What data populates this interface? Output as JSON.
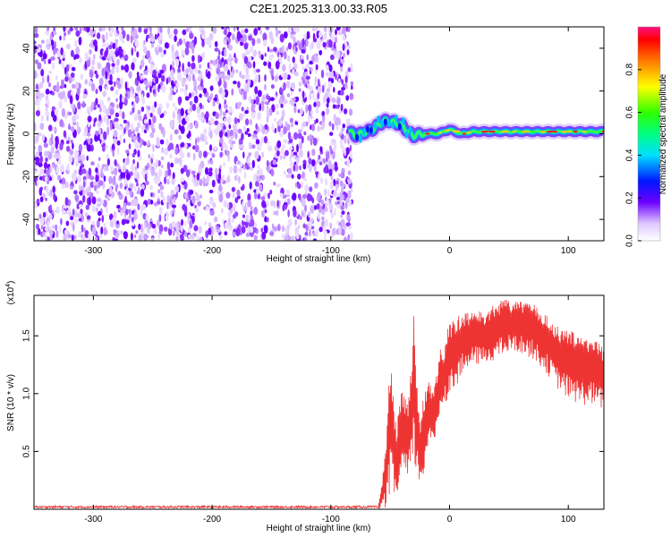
{
  "title": "C2E1.2025.313.00.33.R05",
  "chart_data": [
    {
      "type": "heatmap",
      "title": "C2E1.2025.313.00.33.R05",
      "xlabel": "Height of straight line (km)",
      "ylabel": "Frequency (Hz)",
      "xlim": [
        -350,
        130
      ],
      "ylim": [
        -50,
        50
      ],
      "x_ticks": [
        -300,
        -200,
        -100,
        0,
        100
      ],
      "y_ticks": [
        -40,
        -20,
        0,
        20,
        40
      ],
      "noise_region_x": [
        -350,
        -82
      ],
      "signal_trace": {
        "x": [
          -85,
          -80,
          -75,
          -70,
          -65,
          -60,
          -55,
          -50,
          -45,
          -40,
          -35,
          -30,
          -25,
          -20,
          -15,
          -10,
          -5,
          0,
          5,
          10,
          20,
          30,
          40,
          50,
          60,
          70,
          80,
          90,
          100,
          110,
          120,
          130
        ],
        "freq": [
          2,
          -1,
          0,
          1,
          2,
          4,
          6,
          6,
          5,
          4,
          1,
          -1,
          0,
          0,
          0,
          0,
          1,
          2,
          1,
          0,
          1,
          1,
          1,
          1,
          1,
          1,
          1,
          1,
          1,
          1,
          1,
          1
        ]
      },
      "colorbar": {
        "label": "Normalized spectral amplitude",
        "ticks": [
          0.0,
          0.2,
          0.4,
          0.6,
          0.8
        ],
        "tick_labels": [
          "0.0",
          "0.2",
          "0.4",
          "0.6",
          "0.8"
        ],
        "range": [
          0,
          1
        ]
      }
    },
    {
      "type": "line",
      "xlabel": "Height of straight line (km)",
      "ylabel": "SNR (10 * v/v)",
      "y_multiplier": "(x10",
      "y_multiplier_exp": "4",
      "y_multiplier_close": ")",
      "xlim": [
        -350,
        130
      ],
      "ylim": [
        0,
        1.85
      ],
      "x_ticks": [
        -300,
        -200,
        -100,
        0,
        100
      ],
      "y_ticks": [
        0.5,
        1.0,
        1.5
      ],
      "y_tick_labels": [
        "0.5",
        "1.0",
        "1.5"
      ],
      "color": "#ee3333",
      "series": [
        {
          "name": "SNR",
          "envelope_x": [
            -350,
            -60,
            -58,
            -55,
            -52,
            -50,
            -48,
            -45,
            -42,
            -40,
            -38,
            -35,
            -32,
            -30,
            -28,
            -25,
            -22,
            -20,
            -18,
            -15,
            -12,
            -10,
            -8,
            -5,
            -2,
            0,
            5,
            10,
            15,
            20,
            25,
            30,
            40,
            50,
            60,
            70,
            80,
            90,
            100,
            110,
            120,
            130
          ],
          "upper": [
            0.02,
            0.03,
            0.15,
            0.4,
            0.85,
            1.35,
            1.1,
            0.7,
            0.9,
            1.1,
            1.0,
            0.9,
            1.3,
            1.7,
            1.2,
            0.75,
            1.0,
            1.05,
            1.2,
            1.0,
            1.1,
            1.25,
            1.4,
            1.35,
            1.55,
            1.6,
            1.65,
            1.7,
            1.7,
            1.7,
            1.72,
            1.7,
            1.8,
            1.82,
            1.8,
            1.78,
            1.7,
            1.6,
            1.55,
            1.52,
            1.5,
            1.4
          ],
          "lower": [
            0.0,
            0.0,
            0.0,
            0.0,
            0.05,
            0.1,
            0.15,
            0.05,
            0.2,
            0.25,
            0.3,
            0.2,
            0.35,
            0.4,
            0.3,
            0.2,
            0.25,
            0.45,
            0.55,
            0.5,
            0.6,
            0.7,
            0.85,
            0.9,
            0.95,
            1.0,
            1.05,
            1.15,
            1.2,
            1.25,
            1.25,
            1.25,
            1.3,
            1.35,
            1.35,
            1.3,
            1.2,
            1.05,
            0.95,
            0.9,
            0.9,
            0.85
          ]
        }
      ]
    }
  ]
}
